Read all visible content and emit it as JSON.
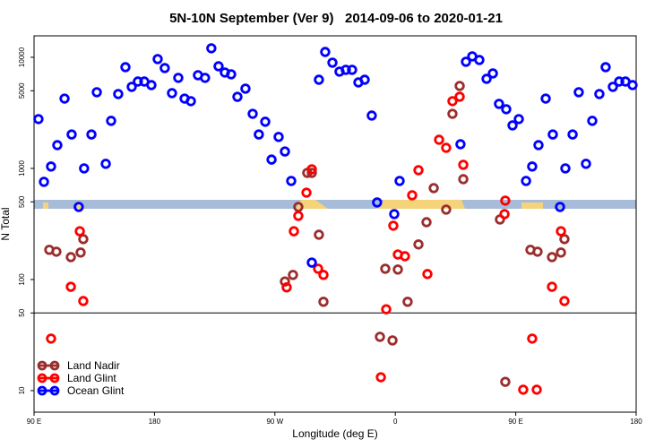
{
  "chart_data": {
    "type": "scatter",
    "title": "5N-10N September (Ver 9)   2014-09-06 to 2020-01-21",
    "x_label": "Longitude (deg E)",
    "y_label": "N Total",
    "xlim": [
      90,
      540
    ],
    "xticks": [
      {
        "value": 90,
        "label": "90 E"
      },
      180,
      {
        "value": 270,
        "label": "90 W"
      },
      {
        "value": 360,
        "label": "0"
      },
      {
        "value": 450,
        "label": "90 E"
      },
      {
        "value": 540,
        "label": "180"
      }
    ],
    "ylim": [
      6.4,
      15600
    ],
    "yticks": [
      10,
      50,
      100,
      500,
      1000,
      5000,
      10000
    ],
    "yscale": "log",
    "reference_line": 50,
    "legend": "lower left",
    "series": [
      {
        "name": "Land Nadir",
        "color": "#9b2d2d",
        "x": [
          101.4,
          106.7,
          117.5,
          124.8,
          126.8,
          277.5,
          283.5,
          287.5,
          294.2,
          297.6,
          302.9,
          306.3,
          348.5,
          352.5,
          357.9,
          361.9,
          369.2,
          377.3,
          383.3,
          388.7,
          398.0,
          402.7,
          408.1,
          410.8,
          438.2,
          442.2,
          461.0,
          466.3,
          477.1,
          483.8,
          486.4
        ],
        "values": [
          185,
          178,
          159,
          175,
          231,
          96,
          110,
          450,
          912,
          912,
          253,
          63,
          30.5,
          125,
          28.3,
          123,
          63,
          207,
          328,
          665,
          426,
          3100,
          5520,
          800,
          347,
          12,
          185,
          178,
          159,
          175,
          231
        ]
      },
      {
        "name": "Land Glint",
        "color": "#ff0000",
        "x": [
          102.7,
          117.5,
          124.2,
          126.8,
          278.8,
          284.2,
          287.5,
          293.6,
          297.6,
          302.3,
          306.3,
          349.2,
          353.2,
          358.5,
          361.9,
          367.2,
          372.6,
          377.3,
          384.0,
          392.7,
          398.0,
          402.7,
          408.1,
          410.8,
          441.6,
          442.2,
          455.6,
          462.3,
          465.7,
          477.1,
          483.8,
          486.4
        ],
        "values": [
          29.4,
          86,
          272,
          64,
          85,
          272,
          374,
          605,
          982,
          125,
          110,
          13.2,
          54,
          305,
          168,
          162,
          573,
          964,
          112,
          1811,
          1532,
          4030,
          4416,
          1077,
          388,
          513,
          10.2,
          29.4,
          10.2,
          86,
          272,
          64
        ]
      },
      {
        "name": "Ocean Glint",
        "color": "#0000ff",
        "x": [
          93.3,
          97.4,
          102.7,
          107.4,
          112.8,
          118.1,
          123.4,
          127.4,
          132.9,
          136.9,
          143.6,
          147.6,
          152.9,
          158.3,
          163.0,
          167.6,
          172.4,
          177.7,
          182.4,
          187.7,
          193.1,
          197.8,
          202.5,
          207.2,
          212.5,
          217.8,
          222.5,
          227.9,
          232.6,
          237.3,
          242.0,
          248.0,
          253.4,
          258.0,
          262.8,
          267.5,
          272.8,
          277.5,
          282.2,
          297.6,
          302.9,
          307.6,
          313.0,
          318.3,
          323.0,
          327.7,
          332.4,
          337.1,
          342.4,
          346.4,
          359.2,
          363.2,
          408.7,
          412.8,
          417.5,
          422.8,
          428.2,
          432.9,
          437.5,
          442.9,
          447.6,
          452.3,
          457.7,
          462.3,
          467.0,
          472.4,
          477.7,
          483.1,
          487.1,
          492.5,
          497.1,
          502.5,
          507.2,
          512.5,
          517.2,
          522.6,
          527.3,
          532.0,
          537.3
        ],
        "values": [
          2780,
          757,
          1040,
          1620,
          4250,
          2020,
          450,
          1000,
          2020,
          4850,
          1100,
          2680,
          4670,
          8150,
          5420,
          6050,
          6050,
          5620,
          9640,
          8000,
          4760,
          6530,
          4250,
          4030,
          6900,
          6530,
          12050,
          8300,
          7300,
          7030,
          4410,
          5220,
          3100,
          2020,
          2630,
          1200,
          1920,
          1420,
          771,
          142,
          6280,
          11170,
          8950,
          7430,
          7710,
          7710,
          5940,
          6280,
          2990,
          494,
          388,
          771,
          1650,
          9120,
          10190,
          9460,
          6400,
          7160,
          3810,
          3410,
          2440,
          2780,
          771,
          1040,
          1620,
          4250,
          2020,
          450,
          1000,
          2020,
          4850,
          1100,
          2680,
          4670,
          8150,
          5420,
          6050,
          6050,
          5620
        ]
      }
    ]
  }
}
